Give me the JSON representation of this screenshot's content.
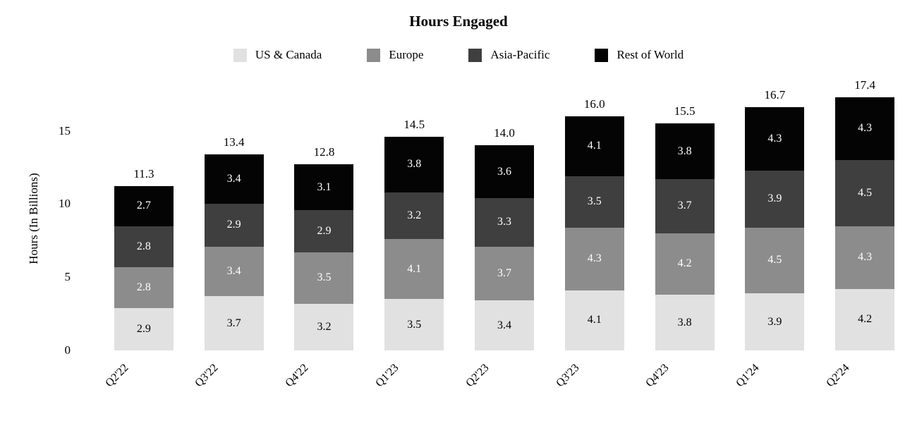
{
  "chart_data": {
    "type": "bar",
    "stacked": true,
    "title": "Hours Engaged",
    "ylabel": "Hours (In Billions)",
    "legend_position": "top",
    "grid": false,
    "categories": [
      "Q2'22",
      "Q3'22",
      "Q4'22",
      "Q1'23",
      "Q2'23",
      "Q3'23",
      "Q4'23",
      "Q1'24",
      "Q2'24"
    ],
    "series": [
      {
        "name": "US & Canada",
        "color": "#e1e1e1",
        "label_color": "#000000",
        "values": [
          2.9,
          3.7,
          3.2,
          3.5,
          3.4,
          4.1,
          3.8,
          3.9,
          4.2
        ]
      },
      {
        "name": "Europe",
        "color": "#8c8c8c",
        "label_color": "#ffffff",
        "values": [
          2.8,
          3.4,
          3.5,
          4.1,
          3.7,
          4.3,
          4.2,
          4.5,
          4.3
        ]
      },
      {
        "name": "Asia-Pacific",
        "color": "#3f3f3f",
        "label_color": "#ffffff",
        "values": [
          2.8,
          2.9,
          2.9,
          3.2,
          3.3,
          3.5,
          3.7,
          3.9,
          4.5
        ]
      },
      {
        "name": "Rest of World",
        "color": "#040404",
        "label_color": "#ffffff",
        "values": [
          2.7,
          3.4,
          3.1,
          3.8,
          3.6,
          4.1,
          3.8,
          4.3,
          4.3
        ]
      }
    ],
    "totals": [
      "11.3",
      "13.4",
      "12.8",
      "14.5",
      "14.0",
      "16.0",
      "15.5",
      "16.7",
      "17.4"
    ],
    "yticks": [
      0,
      5,
      10,
      15
    ],
    "ylim": [
      0,
      18.3
    ]
  }
}
